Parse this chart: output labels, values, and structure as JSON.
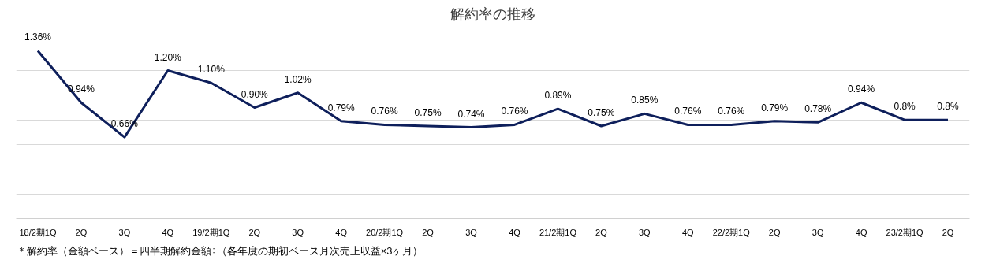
{
  "chart_data": {
    "type": "line",
    "title": "解約率の推移",
    "categories": [
      "18/2期1Q",
      "2Q",
      "3Q",
      "4Q",
      "19/2期1Q",
      "2Q",
      "3Q",
      "4Q",
      "20/2期1Q",
      "2Q",
      "3Q",
      "4Q",
      "21/2期1Q",
      "2Q",
      "3Q",
      "4Q",
      "22/2期1Q",
      "2Q",
      "3Q",
      "4Q",
      "23/2期1Q",
      "2Q"
    ],
    "series": [
      {
        "color": "#0e1f5b",
        "values": [
          1.36,
          0.94,
          0.66,
          1.2,
          1.1,
          0.9,
          1.02,
          0.79,
          0.76,
          0.75,
          0.74,
          0.76,
          0.89,
          0.75,
          0.85,
          0.76,
          0.76,
          0.79,
          0.78,
          0.94,
          0.8,
          0.8
        ],
        "value_labels": [
          "1.36%",
          "0.94%",
          "0.66%",
          "1.20%",
          "1.10%",
          "0.90%",
          "1.02%",
          "0.79%",
          "0.76%",
          "0.75%",
          "0.74%",
          "0.76%",
          "0.89%",
          "0.75%",
          "0.85%",
          "0.76%",
          "0.76%",
          "0.79%",
          "0.78%",
          "0.94%",
          "0.8%",
          "0.8%"
        ]
      }
    ],
    "tick_labels": "x",
    "grid": "y",
    "marker": "none",
    "line_style": "solid",
    "annotations": [
      "＊解約率（金額ベース）＝四半期解約金額÷（各年度の期初ベース月次売上収益×3ヶ月）"
    ]
  }
}
